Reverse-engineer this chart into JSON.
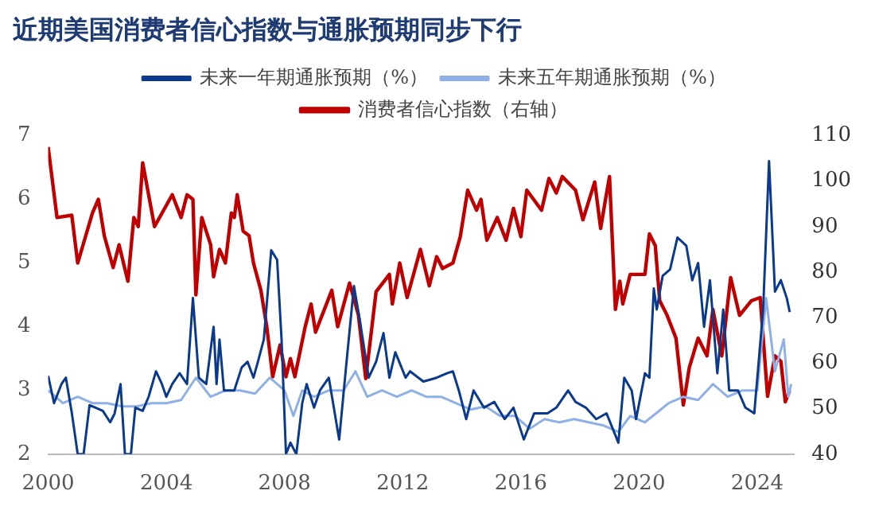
{
  "chart_data": {
    "type": "line",
    "title": "近期美国消费者信心指数与通胀预期同步下行",
    "xlim": [
      2000,
      2025.25
    ],
    "xticks": [
      2000,
      2004,
      2008,
      2012,
      2016,
      2020,
      2024
    ],
    "ylim": [
      2,
      7
    ],
    "yticks": [
      2,
      3,
      4,
      5,
      6,
      7
    ],
    "y2lim": [
      40,
      110
    ],
    "y2ticks": [
      40,
      50,
      60,
      70,
      80,
      90,
      100,
      110
    ],
    "grid": false,
    "legend": "top",
    "marker": "none",
    "line_style": "solid",
    "series": [
      {
        "name": "未来一年期通胀预期（%）",
        "color": "#0b3a8c",
        "axis": "y",
        "x": [
          2000,
          2000.2,
          2000.45,
          2000.6,
          2000.8,
          2001,
          2001.2,
          2001.4,
          2001.85,
          2002.1,
          2002.25,
          2002.45,
          2002.6,
          2002.8,
          2002.95,
          2003.2,
          2003.4,
          2003.65,
          2003.85,
          2004,
          2004.2,
          2004.45,
          2004.7,
          2004.9,
          2005.1,
          2005.35,
          2005.6,
          2005.7,
          2005.8,
          2005.95,
          2006.3,
          2006.55,
          2006.75,
          2006.95,
          2007.1,
          2007.3,
          2007.55,
          2007.75,
          2007.9,
          2008.05,
          2008.2,
          2008.4,
          2008.6,
          2008.75,
          2009,
          2009.2,
          2009.5,
          2009.85,
          2010.1,
          2010.35,
          2010.55,
          2010.85,
          2011.1,
          2011.35,
          2011.55,
          2011.75,
          2012.1,
          2012.25,
          2012.7,
          2013.15,
          2013.5,
          2013.7,
          2013.9,
          2014.15,
          2014.4,
          2014.75,
          2015.1,
          2015.45,
          2015.75,
          2016.1,
          2016.45,
          2016.9,
          2017.2,
          2017.6,
          2017.85,
          2018.2,
          2018.55,
          2018.9,
          2019.3,
          2019.5,
          2019.75,
          2019.9,
          2020.2,
          2020.35,
          2020.5,
          2020.6,
          2020.8,
          2021.05,
          2021.3,
          2021.6,
          2021.8,
          2022,
          2022.2,
          2022.4,
          2022.65,
          2022.85,
          2023.05,
          2023.35,
          2023.6,
          2023.9,
          2024.2,
          2024.4,
          2024.6,
          2024.8,
          2025,
          2025.1
        ],
        "values": [
          3.23,
          2.8,
          3.1,
          3.2,
          2.65,
          2.0,
          2.0,
          2.77,
          2.68,
          2.5,
          2.64,
          3.1,
          2.0,
          2.0,
          2.73,
          2.68,
          2.9,
          3.3,
          3.1,
          2.9,
          3.1,
          3.27,
          3.1,
          4.45,
          3.2,
          3.1,
          4.0,
          3.1,
          3.8,
          3.0,
          3.0,
          3.36,
          3.45,
          3.2,
          3.45,
          3.8,
          5.2,
          5.05,
          3.8,
          2.0,
          2.18,
          2.0,
          2.8,
          3.1,
          2.73,
          3.0,
          3.2,
          2.23,
          3.45,
          4.64,
          4.1,
          3.2,
          3.45,
          3.9,
          3.2,
          3.6,
          3.2,
          3.3,
          3.14,
          3.2,
          3.27,
          3.3,
          3.0,
          2.55,
          3.0,
          2.73,
          2.82,
          2.55,
          2.73,
          2.23,
          2.64,
          2.64,
          2.73,
          3.0,
          2.82,
          2.73,
          2.55,
          2.64,
          2.18,
          3.2,
          3.0,
          2.55,
          3.27,
          3.2,
          4.6,
          4.27,
          4.8,
          4.9,
          5.4,
          5.27,
          4.73,
          5.0,
          4.0,
          4.73,
          3.27,
          4.27,
          3.0,
          3.0,
          2.73,
          2.64,
          4.27,
          6.6,
          4.55,
          4.73,
          4.45,
          4.23
        ]
      },
      {
        "name": "未来五年期通胀预期（%）",
        "color": "#8fb0e6",
        "axis": "y",
        "x": [
          2000,
          2000.5,
          2001,
          2001.5,
          2002,
          2002.5,
          2003,
          2003.5,
          2004,
          2004.5,
          2005,
          2005.5,
          2006,
          2006.5,
          2007,
          2007.5,
          2008,
          2008.3,
          2008.6,
          2009,
          2009.5,
          2010,
          2010.4,
          2010.8,
          2011.3,
          2011.8,
          2012.3,
          2012.8,
          2013.3,
          2013.8,
          2014.3,
          2014.8,
          2015.3,
          2015.8,
          2016.3,
          2016.8,
          2017.3,
          2017.8,
          2018.3,
          2018.8,
          2019.3,
          2019.7,
          2020.2,
          2020.6,
          2021,
          2021.5,
          2022,
          2022.5,
          2023,
          2023.5,
          2024,
          2024.3,
          2024.6,
          2024.9,
          2025.05,
          2025.15
        ],
        "values": [
          3.0,
          2.8,
          2.9,
          2.8,
          2.8,
          2.75,
          2.75,
          2.8,
          2.8,
          2.85,
          3.2,
          2.9,
          3.0,
          3.0,
          2.95,
          3.2,
          3.0,
          2.6,
          3.0,
          2.9,
          3.0,
          3.0,
          3.3,
          2.9,
          3.0,
          2.9,
          3.0,
          2.9,
          2.9,
          2.8,
          2.7,
          2.75,
          2.6,
          2.6,
          2.4,
          2.55,
          2.5,
          2.55,
          2.5,
          2.45,
          2.35,
          2.6,
          2.5,
          2.65,
          2.8,
          2.9,
          2.85,
          3.1,
          2.9,
          3.0,
          3.0,
          4.45,
          3.3,
          3.8,
          2.9,
          3.1
        ]
      },
      {
        "name": "消费者信心指数（右轴）",
        "color": "#c00000",
        "axis": "y2",
        "x": [
          2000,
          2000.3,
          2000.8,
          2001,
          2001.5,
          2001.7,
          2001.9,
          2002.2,
          2002.4,
          2002.7,
          2002.9,
          2003.05,
          2003.2,
          2003.6,
          2004.2,
          2004.5,
          2004.7,
          2004.9,
          2005,
          2005.2,
          2005.5,
          2005.6,
          2005.8,
          2006,
          2006.2,
          2006.3,
          2006.4,
          2006.6,
          2006.8,
          2006.95,
          2007.2,
          2007.4,
          2007.6,
          2007.85,
          2008.05,
          2008.2,
          2008.35,
          2008.7,
          2008.9,
          2009.05,
          2009.6,
          2009.8,
          2010.2,
          2010.5,
          2010.75,
          2011.1,
          2011.55,
          2011.65,
          2011.9,
          2012.15,
          2012.6,
          2012.9,
          2013.15,
          2013.35,
          2013.7,
          2013.95,
          2014.2,
          2014.5,
          2014.65,
          2014.85,
          2015.2,
          2015.5,
          2015.75,
          2016,
          2016.2,
          2016.7,
          2016.95,
          2017.2,
          2017.4,
          2017.85,
          2018.1,
          2018.5,
          2018.7,
          2018.85,
          2019,
          2019.2,
          2019.35,
          2019.45,
          2019.7,
          2020.2,
          2020.35,
          2020.55,
          2020.7,
          2020.95,
          2021.25,
          2021.5,
          2021.7,
          2022,
          2022.3,
          2022.5,
          2022.8,
          2023.1,
          2023.4,
          2023.8,
          2024.1,
          2024.35,
          2024.6,
          2024.8,
          2024.95,
          2025.1
        ],
        "values": [
          107.5,
          92,
          92.5,
          82,
          93,
          96,
          88,
          81,
          86,
          78,
          92,
          90,
          104,
          90,
          97,
          92,
          97,
          96,
          75,
          92,
          86,
          79,
          85,
          82,
          93,
          92,
          97,
          89,
          88,
          82,
          76,
          68,
          57,
          64,
          57,
          61,
          57,
          68,
          73,
          66.8,
          76,
          68,
          77.6,
          70.6,
          56.6,
          75.7,
          79.5,
          73,
          82,
          74.4,
          85,
          77,
          83.4,
          80.8,
          82,
          87.8,
          98,
          93.6,
          96,
          87,
          92,
          87,
          94,
          87.8,
          98,
          93.6,
          100.6,
          97.4,
          101,
          98,
          91.5,
          99.8,
          89.6,
          95.4,
          101,
          71.8,
          78,
          73,
          79.5,
          79.5,
          88.4,
          85.8,
          73.7,
          70.5,
          65.5,
          50.8,
          59,
          65.5,
          61.6,
          71.8,
          61.6,
          78.8,
          70.5,
          73.7,
          74.4,
          52.7,
          61.6,
          60.4,
          51.5,
          54
        ]
      }
    ]
  }
}
